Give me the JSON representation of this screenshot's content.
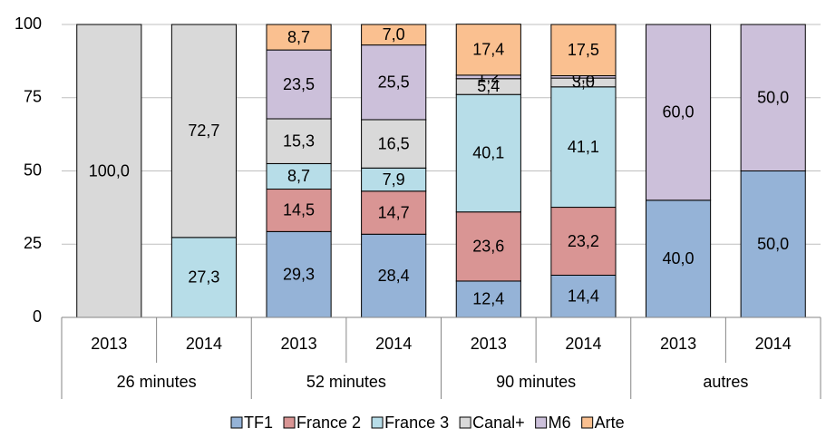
{
  "chart_data": {
    "type": "stacked_bar",
    "categories": [
      "2013",
      "2014",
      "2013",
      "2014",
      "2013",
      "2014",
      "2013",
      "2014"
    ],
    "category_groups": [
      "26 minutes",
      "52 minutes",
      "90 minutes",
      "autres"
    ],
    "series": [
      {
        "name": "TF1",
        "color": "#95b3d7",
        "values": [
          null,
          null,
          29.3,
          28.4,
          12.4,
          14.4,
          40.0,
          50.0
        ],
        "value_labels": [
          null,
          null,
          "29,3",
          "28,4",
          "12,4",
          "14,4",
          "40,0",
          "50,0"
        ]
      },
      {
        "name": "France 2",
        "color": "#d99594",
        "values": [
          null,
          null,
          14.5,
          14.7,
          23.6,
          23.2,
          null,
          null
        ],
        "value_labels": [
          null,
          null,
          "14,5",
          "14,7",
          "23,6",
          "23,2",
          null,
          null
        ]
      },
      {
        "name": "France 3",
        "color": "#b7dde8",
        "values": [
          null,
          27.3,
          8.7,
          7.9,
          40.1,
          41.1,
          null,
          null
        ],
        "value_labels": [
          null,
          "27,3",
          "8,7",
          "7,9",
          "40,1",
          "41,1",
          null,
          null
        ]
      },
      {
        "name": "Canal+",
        "color": "#d9d9d9",
        "values": [
          100.0,
          72.7,
          15.3,
          16.5,
          5.4,
          3.0,
          null,
          null
        ],
        "value_labels": [
          "100,0",
          "72,7",
          "15,3",
          "16,5",
          "5,4",
          "3,0",
          null,
          null
        ]
      },
      {
        "name": "M6",
        "color": "#ccc0da",
        "values": [
          null,
          null,
          23.5,
          25.5,
          1.2,
          0.8,
          60.0,
          50.0
        ],
        "value_labels": [
          null,
          null,
          "23,5",
          "25,5",
          "1,2",
          "0,8",
          "60,0",
          "50,0"
        ]
      },
      {
        "name": "Arte",
        "color": "#fac090",
        "values": [
          null,
          null,
          8.7,
          7.0,
          17.4,
          17.5,
          null,
          null
        ],
        "value_labels": [
          null,
          null,
          "8,7",
          "7,0",
          "17,4",
          "17,5",
          null,
          null
        ]
      }
    ],
    "ylim": [
      0,
      100
    ],
    "yticks": [
      0,
      25,
      50,
      75,
      100
    ],
    "grid": true,
    "legend": "bottom"
  }
}
